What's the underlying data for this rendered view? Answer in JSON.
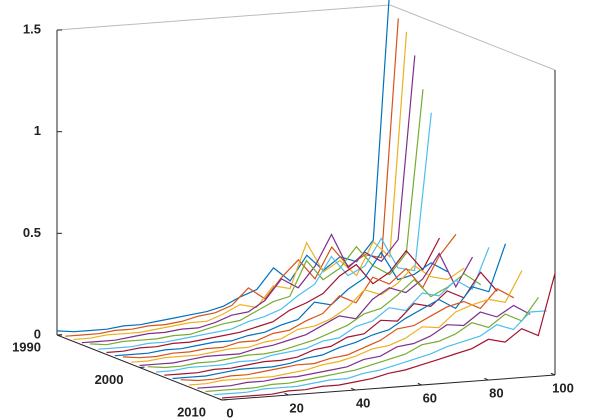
{
  "chart_data": {
    "type": "waterfall3d",
    "x": [
      0,
      5,
      10,
      15,
      20,
      25,
      30,
      35,
      40,
      45,
      50,
      55,
      60,
      65,
      70,
      75,
      80,
      85,
      90,
      95,
      100
    ],
    "xlim": [
      0,
      100
    ],
    "xticks": [
      0,
      20,
      40,
      60,
      80,
      100
    ],
    "ylim": [
      1990,
      2010
    ],
    "yticks": [
      1990,
      2000,
      2010
    ],
    "zlim": [
      0,
      1.5
    ],
    "zticks": [
      0,
      0.5,
      1,
      1.5
    ],
    "series": [
      {
        "y": 1990,
        "color": "#0072BD",
        "values": [
          0.02,
          0.01,
          0.01,
          0.01,
          0.02,
          0.02,
          0.03,
          0.04,
          0.05,
          0.06,
          0.08,
          0.12,
          0.15,
          0.25,
          0.18,
          0.3,
          0.22,
          0.28,
          0.25,
          0.35,
          1.6
        ]
      },
      {
        "y": 1991,
        "color": "#D95319",
        "values": [
          0.01,
          0.01,
          0.01,
          0.02,
          0.02,
          0.03,
          0.03,
          0.04,
          0.06,
          0.07,
          0.1,
          0.18,
          0.12,
          0.22,
          0.3,
          0.2,
          0.35,
          0.25,
          0.3,
          0.28,
          1.45
        ]
      },
      {
        "y": 1992,
        "color": "#EDB120",
        "values": [
          0.01,
          0.01,
          0.02,
          0.02,
          0.02,
          0.03,
          0.04,
          0.05,
          0.05,
          0.08,
          0.12,
          0.1,
          0.2,
          0.18,
          0.4,
          0.25,
          0.3,
          0.22,
          0.38,
          0.3,
          1.4
        ]
      },
      {
        "y": 1993,
        "color": "#7E2F8E",
        "values": [
          0.01,
          0.01,
          0.01,
          0.02,
          0.03,
          0.03,
          0.04,
          0.04,
          0.06,
          0.09,
          0.1,
          0.15,
          0.25,
          0.2,
          0.3,
          0.45,
          0.28,
          0.35,
          0.3,
          0.4,
          1.3
        ]
      },
      {
        "y": 1994,
        "color": "#77AC30",
        "values": [
          0.02,
          0.01,
          0.02,
          0.02,
          0.02,
          0.03,
          0.03,
          0.05,
          0.07,
          0.08,
          0.12,
          0.16,
          0.18,
          0.35,
          0.25,
          0.3,
          0.4,
          0.3,
          0.25,
          0.35,
          1.15
        ]
      },
      {
        "y": 1995,
        "color": "#4DBEEE",
        "values": [
          0.01,
          0.01,
          0.01,
          0.02,
          0.02,
          0.03,
          0.04,
          0.05,
          0.06,
          0.09,
          0.11,
          0.14,
          0.2,
          0.25,
          0.38,
          0.28,
          0.32,
          0.45,
          0.3,
          0.28,
          1.05
        ]
      },
      {
        "y": 1996,
        "color": "#A2142F",
        "values": [
          0.01,
          0.01,
          0.02,
          0.02,
          0.03,
          0.03,
          0.04,
          0.05,
          0.06,
          0.08,
          0.1,
          0.15,
          0.18,
          0.22,
          0.3,
          0.35,
          0.25,
          0.3,
          0.4,
          0.3,
          0.45
        ]
      },
      {
        "y": 1997,
        "color": "#0072BD",
        "values": [
          0.01,
          0.01,
          0.01,
          0.02,
          0.02,
          0.03,
          0.04,
          0.04,
          0.06,
          0.07,
          0.1,
          0.12,
          0.2,
          0.18,
          0.25,
          0.3,
          0.42,
          0.28,
          0.3,
          0.35,
          0.3
        ]
      },
      {
        "y": 1998,
        "color": "#D95319",
        "values": [
          0.02,
          0.01,
          0.01,
          0.02,
          0.02,
          0.03,
          0.03,
          0.05,
          0.05,
          0.08,
          0.09,
          0.13,
          0.16,
          0.24,
          0.2,
          0.32,
          0.28,
          0.35,
          0.25,
          0.4,
          0.5
        ]
      },
      {
        "y": 1999,
        "color": "#EDB120",
        "values": [
          0.01,
          0.01,
          0.02,
          0.02,
          0.02,
          0.03,
          0.04,
          0.04,
          0.06,
          0.07,
          0.11,
          0.12,
          0.15,
          0.2,
          0.28,
          0.25,
          0.3,
          0.38,
          0.32,
          0.3,
          0.35
        ]
      },
      {
        "y": 2000,
        "color": "#7E2F8E",
        "values": [
          0.01,
          0.01,
          0.01,
          0.02,
          0.03,
          0.03,
          0.03,
          0.05,
          0.06,
          0.08,
          0.1,
          0.14,
          0.18,
          0.16,
          0.25,
          0.3,
          0.27,
          0.33,
          0.45,
          0.28,
          0.42
        ]
      },
      {
        "y": 2001,
        "color": "#77AC30",
        "values": [
          0.02,
          0.01,
          0.01,
          0.02,
          0.02,
          0.03,
          0.04,
          0.04,
          0.05,
          0.07,
          0.09,
          0.12,
          0.15,
          0.2,
          0.22,
          0.28,
          0.35,
          0.26,
          0.3,
          0.36,
          0.3
        ]
      },
      {
        "y": 2002,
        "color": "#4DBEEE",
        "values": [
          0.01,
          0.01,
          0.02,
          0.02,
          0.02,
          0.03,
          0.03,
          0.05,
          0.06,
          0.07,
          0.1,
          0.11,
          0.16,
          0.18,
          0.24,
          0.22,
          0.3,
          0.28,
          0.35,
          0.3,
          0.5
        ]
      },
      {
        "y": 2003,
        "color": "#A2142F",
        "values": [
          0.01,
          0.01,
          0.01,
          0.02,
          0.02,
          0.03,
          0.04,
          0.04,
          0.05,
          0.08,
          0.09,
          0.13,
          0.14,
          0.2,
          0.19,
          0.27,
          0.25,
          0.32,
          0.28,
          0.4,
          0.3
        ]
      },
      {
        "y": 2004,
        "color": "#0072BD",
        "values": [
          0.01,
          0.01,
          0.01,
          0.02,
          0.03,
          0.03,
          0.03,
          0.04,
          0.06,
          0.07,
          0.1,
          0.12,
          0.15,
          0.17,
          0.22,
          0.26,
          0.3,
          0.25,
          0.35,
          0.32,
          0.55
        ]
      },
      {
        "y": 2005,
        "color": "#D95319",
        "values": [
          0.02,
          0.01,
          0.01,
          0.02,
          0.02,
          0.03,
          0.04,
          0.05,
          0.05,
          0.07,
          0.08,
          0.11,
          0.14,
          0.19,
          0.2,
          0.24,
          0.28,
          0.3,
          0.26,
          0.35,
          0.3
        ]
      },
      {
        "y": 2006,
        "color": "#EDB120",
        "values": [
          0.01,
          0.01,
          0.02,
          0.02,
          0.02,
          0.02,
          0.03,
          0.04,
          0.06,
          0.07,
          0.09,
          0.12,
          0.13,
          0.16,
          0.21,
          0.2,
          0.27,
          0.3,
          0.32,
          0.3,
          0.45
        ]
      },
      {
        "y": 2007,
        "color": "#7E2F8E",
        "values": [
          0.01,
          0.01,
          0.01,
          0.02,
          0.02,
          0.03,
          0.03,
          0.04,
          0.05,
          0.06,
          0.09,
          0.1,
          0.14,
          0.15,
          0.18,
          0.23,
          0.22,
          0.28,
          0.25,
          0.3,
          0.25
        ]
      },
      {
        "y": 2008,
        "color": "#77AC30",
        "values": [
          0.01,
          0.01,
          0.01,
          0.01,
          0.02,
          0.02,
          0.03,
          0.04,
          0.05,
          0.06,
          0.08,
          0.1,
          0.12,
          0.16,
          0.17,
          0.2,
          0.25,
          0.22,
          0.28,
          0.24,
          0.35
        ]
      },
      {
        "y": 2009,
        "color": "#4DBEEE",
        "values": [
          0.01,
          0.01,
          0.01,
          0.02,
          0.02,
          0.02,
          0.03,
          0.04,
          0.04,
          0.06,
          0.07,
          0.09,
          0.11,
          0.13,
          0.16,
          0.18,
          0.2,
          0.25,
          0.22,
          0.3,
          0.3
        ]
      },
      {
        "y": 2010,
        "color": "#A2142F",
        "values": [
          0.01,
          0.01,
          0.01,
          0.01,
          0.02,
          0.02,
          0.03,
          0.03,
          0.04,
          0.05,
          0.07,
          0.08,
          0.1,
          0.12,
          0.14,
          0.16,
          0.2,
          0.18,
          0.24,
          0.2,
          0.5
        ]
      }
    ]
  }
}
